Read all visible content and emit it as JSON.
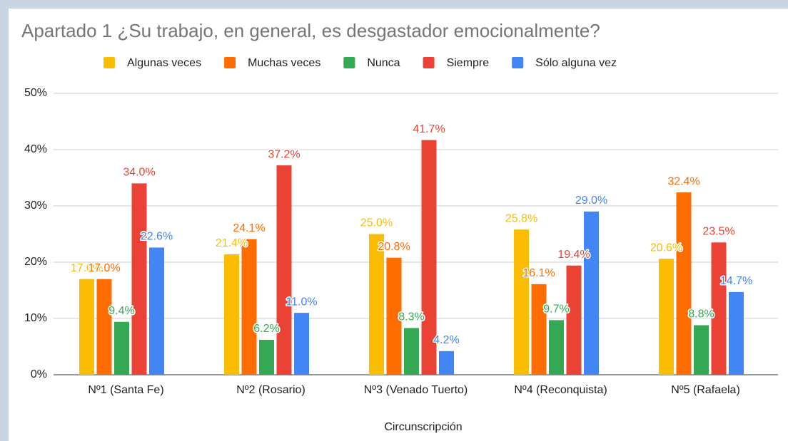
{
  "chart_data": {
    "type": "bar",
    "title": "Apartado 1 ¿Su trabajo, en general, es desgastador emocionalmente?",
    "x_label": "Circunscripción",
    "categories": [
      "Nº1 (Santa Fe)",
      "Nº2 (Rosario)",
      "Nº3 (Venado Tuerto)",
      "Nº4 (Reconquista)",
      "Nº5 (Rafaela)"
    ],
    "series": [
      {
        "name": "Algunas veces",
        "color": "#fbbc04",
        "values": [
          17.0,
          21.4,
          25.0,
          25.8,
          20.6
        ],
        "value_labels": [
          "17.0%",
          "21.4%",
          "25.0%",
          "25.8%",
          "20.6%"
        ]
      },
      {
        "name": "Muchas veces",
        "color": "#ff6d01",
        "values": [
          17.0,
          24.1,
          20.8,
          16.1,
          32.4
        ],
        "value_labels": [
          "17.0%",
          "24.1%",
          "20.8%",
          "16.1%",
          "32.4%"
        ]
      },
      {
        "name": "Nunca",
        "color": "#34a853",
        "values": [
          9.4,
          6.2,
          8.3,
          9.7,
          8.8
        ],
        "value_labels": [
          "9.4%",
          "6.2%",
          "8.3%",
          "9.7%",
          "8.8%"
        ]
      },
      {
        "name": "Siempre",
        "color": "#ea4335",
        "values": [
          34.0,
          37.2,
          41.7,
          19.4,
          23.5
        ],
        "value_labels": [
          "34.0%",
          "37.2%",
          "41.7%",
          "19.4%",
          "23.5%"
        ]
      },
      {
        "name": "Sólo alguna vez",
        "color": "#4285f4",
        "values": [
          22.6,
          11.0,
          4.2,
          29.0,
          14.7
        ],
        "value_labels": [
          "22.6%",
          "11.0%",
          "4.2%",
          "29.0%",
          "14.7%"
        ]
      }
    ],
    "ylim": [
      0,
      50
    ],
    "yticks": [
      {
        "value": 0,
        "label": "0%"
      },
      {
        "value": 10,
        "label": "10%"
      },
      {
        "value": 20,
        "label": "20%"
      },
      {
        "value": 30,
        "label": "30%"
      },
      {
        "value": 40,
        "label": "40%"
      },
      {
        "value": 50,
        "label": "50%"
      }
    ],
    "grid": true,
    "legend": "top"
  }
}
